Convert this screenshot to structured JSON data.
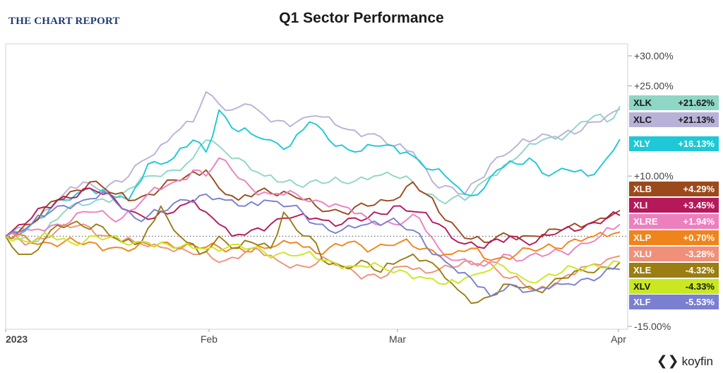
{
  "brand": "THE CHART REPORT",
  "logo": "koyfin",
  "chart_data": {
    "type": "line",
    "title": "Q1 Sector Performance",
    "x_ticks": [
      "2023",
      "Feb",
      "Mar",
      "Apr"
    ],
    "y_ticks": [
      "+30.00%",
      "+25.00%",
      "+10.00%",
      "-15.00%"
    ],
    "ylim": [
      -15,
      32
    ],
    "x_count": 62,
    "grid": false,
    "zero_line": "dotted",
    "legend_position": "right (end-value labels)",
    "series": [
      {
        "name": "XLK",
        "value_label": "+21.62%",
        "color": "#8ed6c6",
        "keyframes": [
          [
            0,
            0
          ],
          [
            4,
            -1
          ],
          [
            9,
            4
          ],
          [
            14,
            6
          ],
          [
            18,
            7
          ],
          [
            22,
            10
          ],
          [
            26,
            11
          ],
          [
            29,
            13
          ],
          [
            31,
            16
          ],
          [
            33,
            15
          ],
          [
            36,
            13
          ],
          [
            40,
            10
          ],
          [
            43,
            9
          ],
          [
            47,
            9
          ],
          [
            52,
            9
          ],
          [
            57,
            10
          ],
          [
            60,
            10
          ],
          [
            63,
            9
          ],
          [
            67,
            6
          ],
          [
            71,
            6
          ],
          [
            75,
            10
          ],
          [
            79,
            13
          ],
          [
            83,
            16
          ],
          [
            87,
            17
          ],
          [
            88,
            18
          ],
          [
            91,
            20
          ],
          [
            93,
            19
          ],
          [
            95,
            21.62
          ]
        ]
      },
      {
        "name": "XLC",
        "value_label": "+21.13%",
        "color": "#b9b2d8",
        "keyframes": [
          [
            0,
            0
          ],
          [
            4,
            2
          ],
          [
            9,
            7
          ],
          [
            12,
            9
          ],
          [
            14,
            8
          ],
          [
            18,
            9
          ],
          [
            22,
            13
          ],
          [
            26,
            17
          ],
          [
            29,
            19
          ],
          [
            31,
            24
          ],
          [
            33,
            22
          ],
          [
            35,
            21
          ],
          [
            37,
            22
          ],
          [
            39,
            21
          ],
          [
            41,
            19
          ],
          [
            45,
            19
          ],
          [
            48,
            20
          ],
          [
            52,
            18
          ],
          [
            56,
            17
          ],
          [
            60,
            15
          ],
          [
            63,
            14
          ],
          [
            67,
            8
          ],
          [
            71,
            7
          ],
          [
            75,
            12
          ],
          [
            79,
            15
          ],
          [
            83,
            17
          ],
          [
            88,
            17
          ],
          [
            91,
            19
          ],
          [
            93,
            20
          ],
          [
            95,
            21.13
          ]
        ]
      },
      {
        "name": "XLY",
        "value_label": "+16.13%",
        "color": "#1ec8d6",
        "keyframes": [
          [
            0,
            0
          ],
          [
            4,
            2
          ],
          [
            9,
            6
          ],
          [
            13,
            8
          ],
          [
            16,
            7
          ],
          [
            19,
            6
          ],
          [
            22,
            12
          ],
          [
            26,
            13
          ],
          [
            29,
            16
          ],
          [
            31,
            14
          ],
          [
            33,
            21
          ],
          [
            35,
            18
          ],
          [
            38,
            17
          ],
          [
            41,
            16
          ],
          [
            44,
            15
          ],
          [
            47,
            19
          ],
          [
            50,
            16
          ],
          [
            54,
            14
          ],
          [
            58,
            15
          ],
          [
            62,
            14
          ],
          [
            66,
            11
          ],
          [
            69,
            9
          ],
          [
            71,
            7
          ],
          [
            74,
            8
          ],
          [
            76,
            11
          ],
          [
            79,
            12
          ],
          [
            81,
            13
          ],
          [
            84,
            10
          ],
          [
            87,
            11
          ],
          [
            90,
            10
          ],
          [
            93,
            13
          ],
          [
            95,
            16.13
          ]
        ]
      },
      {
        "name": "XLB",
        "value_label": "+4.29%",
        "color": "#9b4a1c",
        "keyframes": [
          [
            0,
            0
          ],
          [
            4,
            2
          ],
          [
            8,
            6
          ],
          [
            13,
            9
          ],
          [
            17,
            7
          ],
          [
            20,
            6
          ],
          [
            24,
            8
          ],
          [
            28,
            10
          ],
          [
            31,
            11
          ],
          [
            33,
            8
          ],
          [
            36,
            6
          ],
          [
            40,
            8
          ],
          [
            44,
            7
          ],
          [
            48,
            5
          ],
          [
            52,
            4
          ],
          [
            56,
            5
          ],
          [
            60,
            6
          ],
          [
            63,
            9
          ],
          [
            65,
            7
          ],
          [
            67,
            4
          ],
          [
            70,
            1
          ],
          [
            74,
            -1
          ],
          [
            78,
            0
          ],
          [
            82,
            0
          ],
          [
            86,
            1
          ],
          [
            90,
            2
          ],
          [
            92,
            3
          ],
          [
            95,
            4.29
          ]
        ]
      },
      {
        "name": "XLI",
        "value_label": "+3.45%",
        "color": "#b5195a",
        "keyframes": [
          [
            0,
            0
          ],
          [
            4,
            3
          ],
          [
            8,
            6
          ],
          [
            13,
            8
          ],
          [
            17,
            6
          ],
          [
            20,
            4
          ],
          [
            23,
            3
          ],
          [
            26,
            4
          ],
          [
            29,
            6
          ],
          [
            31,
            4
          ],
          [
            33,
            2
          ],
          [
            35,
            0
          ],
          [
            38,
            1
          ],
          [
            41,
            2
          ],
          [
            44,
            3
          ],
          [
            48,
            3
          ],
          [
            52,
            2
          ],
          [
            56,
            3
          ],
          [
            60,
            5
          ],
          [
            64,
            4
          ],
          [
            67,
            2
          ],
          [
            70,
            -1
          ],
          [
            74,
            -2
          ],
          [
            78,
            0
          ],
          [
            82,
            -1
          ],
          [
            86,
            1
          ],
          [
            90,
            2
          ],
          [
            95,
            3.45
          ]
        ]
      },
      {
        "name": "XLRE",
        "value_label": "+1.94%",
        "color": "#ec80bf",
        "keyframes": [
          [
            0,
            0
          ],
          [
            4,
            1
          ],
          [
            8,
            2
          ],
          [
            13,
            4
          ],
          [
            18,
            3
          ],
          [
            22,
            7
          ],
          [
            26,
            9
          ],
          [
            29,
            11
          ],
          [
            31,
            10
          ],
          [
            33,
            13
          ],
          [
            35,
            11
          ],
          [
            38,
            8
          ],
          [
            41,
            7
          ],
          [
            45,
            7
          ],
          [
            48,
            6
          ],
          [
            52,
            5
          ],
          [
            56,
            3
          ],
          [
            60,
            2
          ],
          [
            64,
            3
          ],
          [
            67,
            -2
          ],
          [
            70,
            -4
          ],
          [
            74,
            -5
          ],
          [
            77,
            -3
          ],
          [
            80,
            -4
          ],
          [
            84,
            -3
          ],
          [
            88,
            -2
          ],
          [
            92,
            0
          ],
          [
            95,
            1.94
          ]
        ]
      },
      {
        "name": "XLP",
        "value_label": "+0.70%",
        "color": "#f0841c",
        "keyframes": [
          [
            0,
            0
          ],
          [
            6,
            -1
          ],
          [
            11,
            -1
          ],
          [
            16,
            -2
          ],
          [
            20,
            -2
          ],
          [
            25,
            -1
          ],
          [
            30,
            -2
          ],
          [
            35,
            -2
          ],
          [
            40,
            -2
          ],
          [
            45,
            -1
          ],
          [
            49,
            -3
          ],
          [
            53,
            -1
          ],
          [
            57,
            -2
          ],
          [
            61,
            -1
          ],
          [
            65,
            -2
          ],
          [
            69,
            -3
          ],
          [
            72,
            -2
          ],
          [
            75,
            -4
          ],
          [
            79,
            -3
          ],
          [
            83,
            -2
          ],
          [
            87,
            -1
          ],
          [
            91,
            0
          ],
          [
            95,
            0.7
          ]
        ]
      },
      {
        "name": "XLU",
        "value_label": "-3.28%",
        "color": "#f0907a",
        "keyframes": [
          [
            0,
            0
          ],
          [
            4,
            -1
          ],
          [
            8,
            1
          ],
          [
            12,
            2
          ],
          [
            16,
            0
          ],
          [
            20,
            -1
          ],
          [
            25,
            -2
          ],
          [
            30,
            -3
          ],
          [
            34,
            -4
          ],
          [
            38,
            -2
          ],
          [
            42,
            -4
          ],
          [
            46,
            -5
          ],
          [
            50,
            -4
          ],
          [
            54,
            -6
          ],
          [
            58,
            -7
          ],
          [
            62,
            -5
          ],
          [
            66,
            -6
          ],
          [
            70,
            -5
          ],
          [
            74,
            -4
          ],
          [
            78,
            -7
          ],
          [
            82,
            -9
          ],
          [
            86,
            -7
          ],
          [
            90,
            -5
          ],
          [
            95,
            -3.28
          ]
        ]
      },
      {
        "name": "XLE",
        "value_label": "-4.32%",
        "color": "#9a7d13",
        "keyframes": [
          [
            0,
            0
          ],
          [
            2,
            -3
          ],
          [
            4,
            -3
          ],
          [
            7,
            1
          ],
          [
            10,
            2
          ],
          [
            14,
            2
          ],
          [
            18,
            -1
          ],
          [
            21,
            -1
          ],
          [
            24,
            5
          ],
          [
            26,
            1
          ],
          [
            28,
            -1
          ],
          [
            30,
            -3
          ],
          [
            33,
            0
          ],
          [
            36,
            -2
          ],
          [
            38,
            -1
          ],
          [
            41,
            -2
          ],
          [
            43,
            4
          ],
          [
            45,
            1
          ],
          [
            47,
            0
          ],
          [
            49,
            -4
          ],
          [
            52,
            -5
          ],
          [
            55,
            -4
          ],
          [
            58,
            -6
          ],
          [
            61,
            -4
          ],
          [
            63,
            -3
          ],
          [
            65,
            -4
          ],
          [
            68,
            -7
          ],
          [
            70,
            -9
          ],
          [
            73,
            -11
          ],
          [
            75,
            -10
          ],
          [
            78,
            -8
          ],
          [
            82,
            -9
          ],
          [
            86,
            -7
          ],
          [
            90,
            -6
          ],
          [
            95,
            -4.32
          ]
        ]
      },
      {
        "name": "XLV",
        "value_label": "-4.33%",
        "color": "#c9e81f",
        "keyframes": [
          [
            0,
            0
          ],
          [
            4,
            -1
          ],
          [
            7,
            0
          ],
          [
            10,
            -1
          ],
          [
            14,
            0
          ],
          [
            18,
            -1
          ],
          [
            22,
            -1
          ],
          [
            26,
            -2
          ],
          [
            30,
            -2
          ],
          [
            34,
            -2
          ],
          [
            38,
            -2
          ],
          [
            42,
            -3
          ],
          [
            46,
            -3
          ],
          [
            50,
            -4
          ],
          [
            54,
            -5
          ],
          [
            58,
            -5
          ],
          [
            62,
            -6
          ],
          [
            65,
            -7
          ],
          [
            68,
            -8
          ],
          [
            71,
            -7
          ],
          [
            74,
            -6
          ],
          [
            77,
            -5
          ],
          [
            80,
            -7
          ],
          [
            83,
            -7
          ],
          [
            86,
            -6
          ],
          [
            90,
            -5
          ],
          [
            95,
            -4.33
          ]
        ]
      },
      {
        "name": "XLF",
        "value_label": "-5.53%",
        "color": "#7a7fd0",
        "keyframes": [
          [
            0,
            0
          ],
          [
            4,
            2
          ],
          [
            8,
            5
          ],
          [
            12,
            6
          ],
          [
            16,
            7
          ],
          [
            20,
            3
          ],
          [
            24,
            4
          ],
          [
            28,
            6
          ],
          [
            31,
            7
          ],
          [
            34,
            6
          ],
          [
            37,
            5
          ],
          [
            40,
            6
          ],
          [
            44,
            5
          ],
          [
            48,
            2
          ],
          [
            52,
            1
          ],
          [
            56,
            2
          ],
          [
            60,
            3
          ],
          [
            63,
            1
          ],
          [
            66,
            -3
          ],
          [
            69,
            -5
          ],
          [
            72,
            -7
          ],
          [
            75,
            -10
          ],
          [
            78,
            -8
          ],
          [
            82,
            -9
          ],
          [
            86,
            -8
          ],
          [
            90,
            -7
          ],
          [
            95,
            -5.53
          ]
        ]
      }
    ]
  }
}
